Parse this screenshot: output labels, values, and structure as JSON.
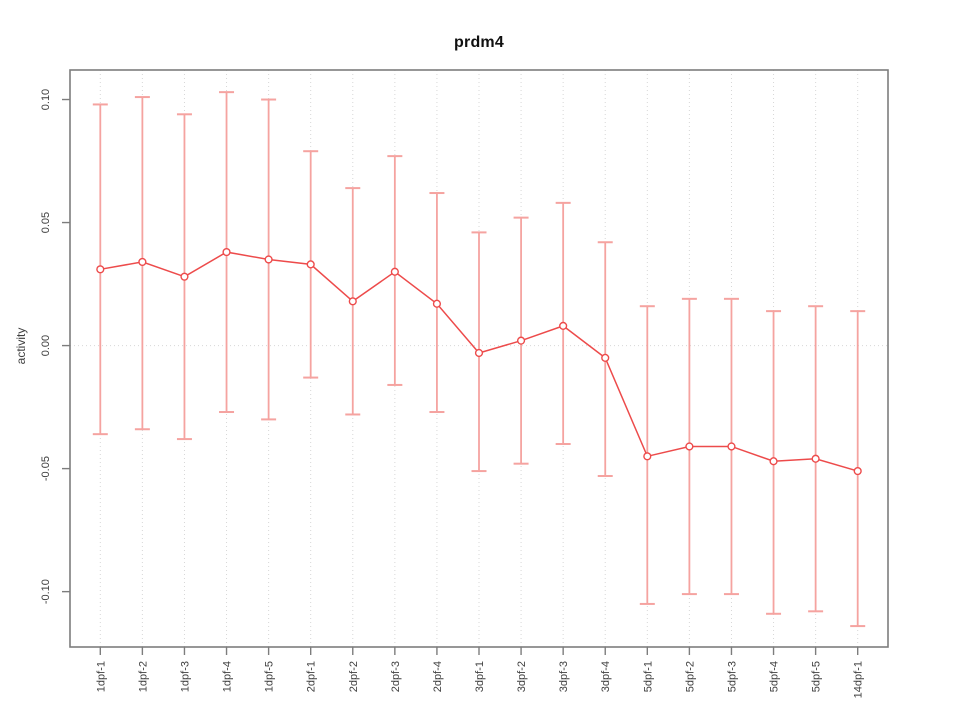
{
  "chart_data": {
    "type": "line",
    "title": "prdm4",
    "xlabel": "",
    "ylabel": "activity",
    "legend": "none",
    "marker": "open-circle",
    "categories": [
      "1dpf-1",
      "1dpf-2",
      "1dpf-3",
      "1dpf-4",
      "1dpf-5",
      "2dpf-1",
      "2dpf-2",
      "2dpf-3",
      "2dpf-4",
      "3dpf-1",
      "3dpf-2",
      "3dpf-3",
      "3dpf-4",
      "5dpf-1",
      "5dpf-2",
      "5dpf-3",
      "5dpf-4",
      "5dpf-5",
      "14dpf-1"
    ],
    "series": [
      {
        "name": "activity",
        "values": [
          0.031,
          0.034,
          0.028,
          0.038,
          0.035,
          0.033,
          0.018,
          0.03,
          0.017,
          -0.003,
          0.002,
          0.008,
          -0.005,
          -0.045,
          -0.041,
          -0.041,
          -0.047,
          -0.046,
          -0.051
        ],
        "err_high": [
          0.098,
          0.101,
          0.094,
          0.103,
          0.1,
          0.079,
          0.064,
          0.077,
          0.062,
          0.046,
          0.052,
          0.058,
          0.042,
          0.016,
          0.019,
          0.019,
          0.014,
          0.016,
          0.014
        ],
        "err_low": [
          -0.036,
          -0.034,
          -0.038,
          -0.027,
          -0.03,
          -0.013,
          -0.028,
          -0.016,
          -0.027,
          -0.051,
          -0.048,
          -0.04,
          -0.053,
          -0.105,
          -0.101,
          -0.101,
          -0.109,
          -0.108,
          -0.114
        ]
      }
    ],
    "yticks": {
      "values": [
        -0.1,
        -0.05,
        0.0,
        0.05,
        0.1
      ],
      "labels": [
        "-0.10",
        "-0.05",
        "0.00",
        "0.05",
        "0.10"
      ]
    },
    "ylim": [
      -0.1225,
      0.112
    ],
    "grid": {
      "vertical": "dotted line at every category",
      "horizontal": "dotted line at y=0 only"
    },
    "colors": {
      "series": "#ed4b4b",
      "error_bar": "#f5a3a0",
      "frame": "#7d7d7d",
      "tick": "#7d7d7d",
      "grid": "#d7d7d7",
      "tick_text": "#3f3f3f",
      "background": "#ffffff"
    }
  }
}
